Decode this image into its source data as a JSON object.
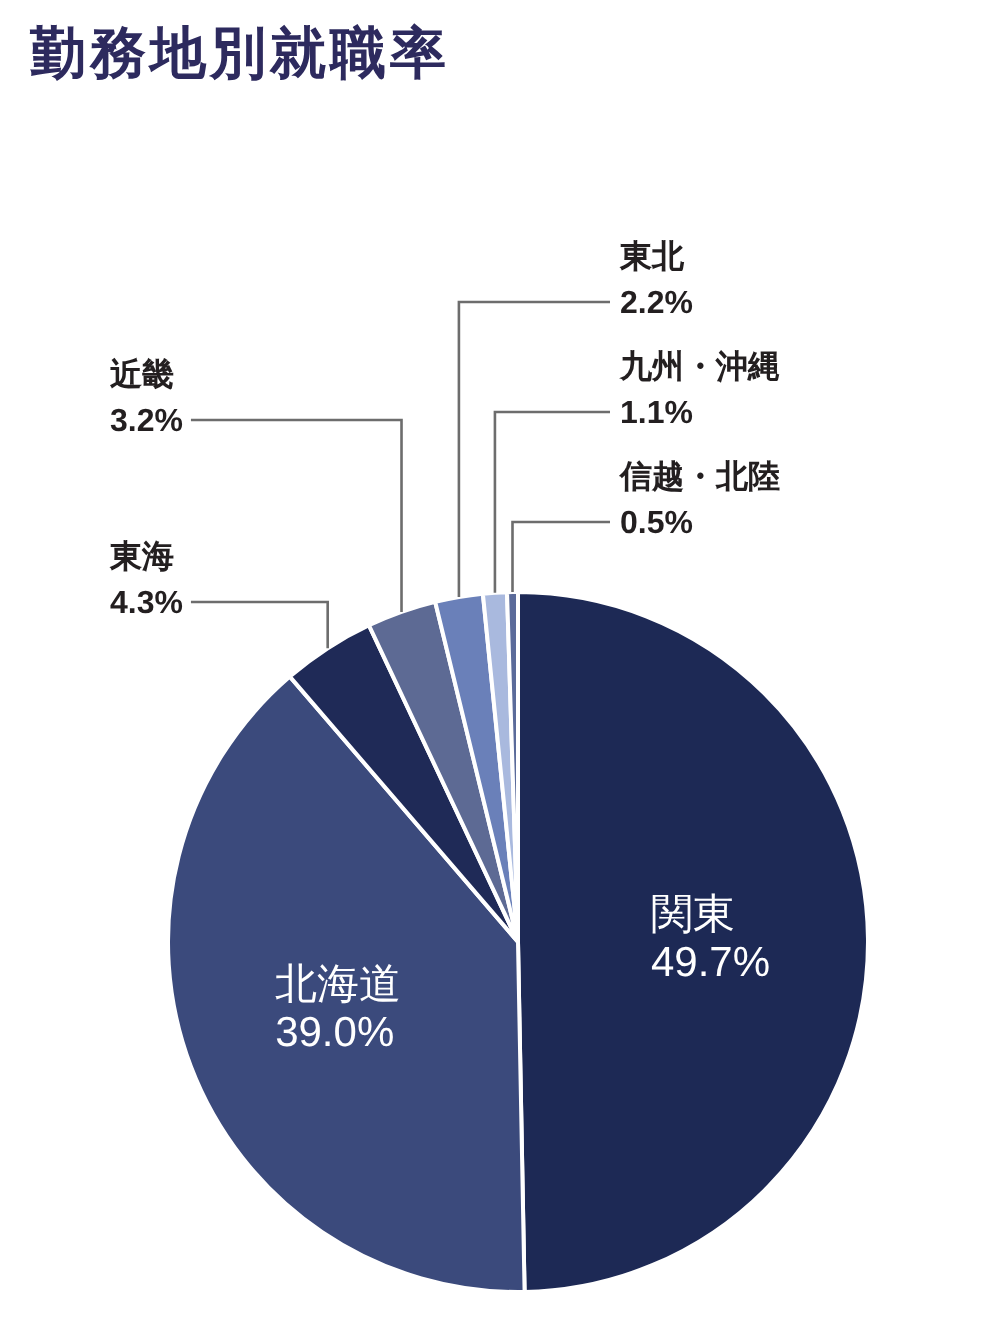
{
  "chart_data": {
    "type": "pie",
    "title": "勤務地別就職率",
    "categories": [
      "関東",
      "北海道",
      "東海",
      "近畿",
      "東北",
      "九州・沖縄",
      "信越・北陸"
    ],
    "values": [
      49.7,
      39.0,
      4.3,
      3.2,
      2.2,
      1.1,
      0.5
    ],
    "colors": [
      "#1d2955",
      "#3b4a7c",
      "#1f2a57",
      "#5d6a94",
      "#6a80b9",
      "#a9b9de",
      "#5b6b9a"
    ],
    "value_labels": [
      "49.7%",
      "39.0%",
      "4.3%",
      "3.2%",
      "2.2%",
      "1.1%",
      "0.5%"
    ]
  }
}
